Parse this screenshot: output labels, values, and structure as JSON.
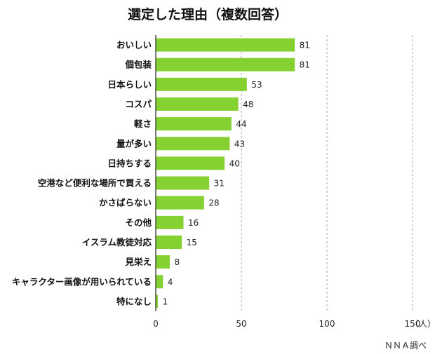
{
  "chart_data": {
    "type": "bar",
    "orientation": "horizontal",
    "title": "選定した理由（複数回答）",
    "categories": [
      "おいしい",
      "個包装",
      "日本らしい",
      "コスパ",
      "軽さ",
      "量が多い",
      "日持ちする",
      "空港など便利な場所で買える",
      "かさばらない",
      "その他",
      "イスラム教徒対応",
      "見栄え",
      "キャラクター画像が用いられている",
      "特になし"
    ],
    "values": [
      81,
      81,
      53,
      48,
      44,
      43,
      40,
      31,
      28,
      16,
      15,
      8,
      4,
      1
    ],
    "xlim": [
      0,
      150
    ],
    "xticks": [
      "0",
      "50",
      "100",
      "150"
    ],
    "xunit": "（人）",
    "grid": true,
    "bar_color": "#86d132",
    "source": "ＮＮＡ調べ"
  }
}
